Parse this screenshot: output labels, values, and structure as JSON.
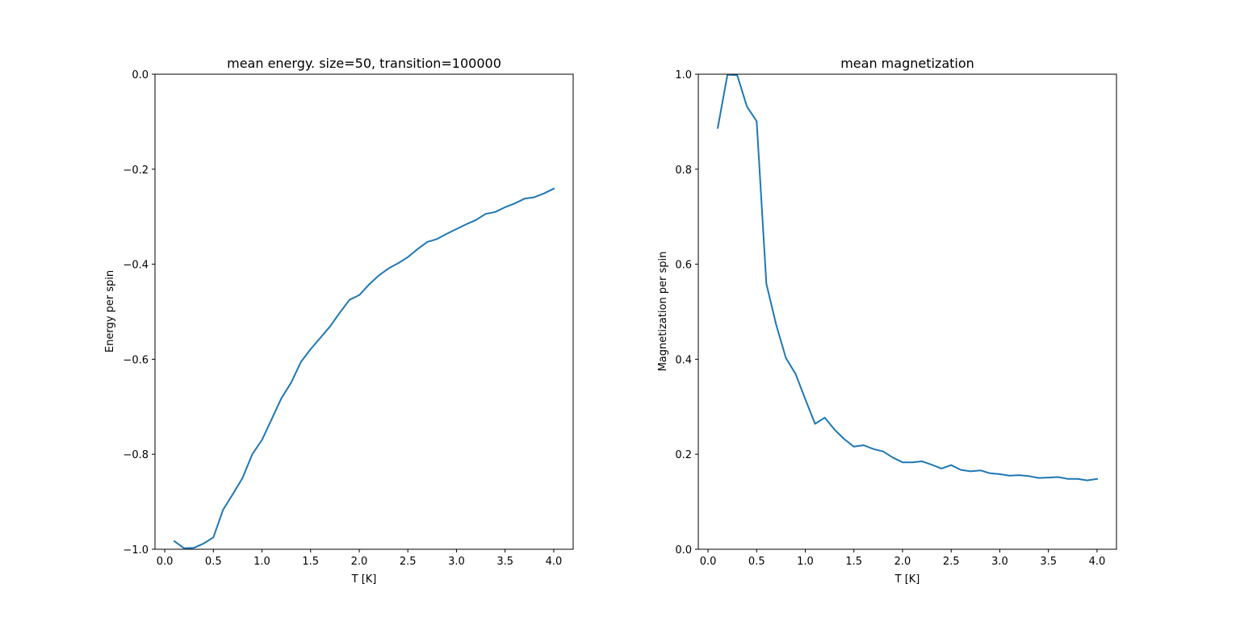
{
  "chart_data": [
    {
      "type": "line",
      "title": "mean energy. size=50, transition=100000",
      "xlabel": "T [K]",
      "ylabel": "Energy per spin",
      "xlim": [
        -0.1,
        4.2
      ],
      "ylim": [
        -1.0,
        0.0
      ],
      "x_ticks": [
        0.0,
        0.5,
        1.0,
        1.5,
        2.0,
        2.5,
        3.0,
        3.5,
        4.0
      ],
      "x_tick_labels": [
        "0.0",
        "0.5",
        "1.0",
        "1.5",
        "2.0",
        "2.5",
        "3.0",
        "3.5",
        "4.0"
      ],
      "y_ticks": [
        -1.0,
        -0.8,
        -0.6,
        -0.4,
        -0.2,
        0.0
      ],
      "y_tick_labels": [
        "−1.0",
        "−0.8",
        "−0.6",
        "−0.4",
        "−0.2",
        "0.0"
      ],
      "grid": false,
      "series": [
        {
          "color": "#1f77b4",
          "x": [
            0.1,
            0.2,
            0.3,
            0.4,
            0.5,
            0.6,
            0.7,
            0.8,
            0.9,
            1.0,
            1.1,
            1.2,
            1.3,
            1.4,
            1.5,
            1.6,
            1.7,
            1.8,
            1.9,
            2.0,
            2.1,
            2.2,
            2.3,
            2.4,
            2.5,
            2.6,
            2.7,
            2.8,
            2.9,
            3.0,
            3.1,
            3.2,
            3.3,
            3.4,
            3.5,
            3.6,
            3.7,
            3.8,
            3.9,
            4.0
          ],
          "y": [
            -0.983,
            -0.998,
            -0.997,
            -0.988,
            -0.975,
            -0.917,
            -0.884,
            -0.85,
            -0.8,
            -0.77,
            -0.726,
            -0.682,
            -0.649,
            -0.606,
            -0.579,
            -0.555,
            -0.531,
            -0.502,
            -0.475,
            -0.465,
            -0.443,
            -0.424,
            -0.409,
            -0.398,
            -0.385,
            -0.368,
            -0.353,
            -0.347,
            -0.336,
            -0.326,
            -0.316,
            -0.307,
            -0.294,
            -0.29,
            -0.28,
            -0.272,
            -0.262,
            -0.259,
            -0.251,
            -0.241
          ]
        }
      ]
    },
    {
      "type": "line",
      "title": "mean magnetization",
      "xlabel": "T [K]",
      "ylabel": "Magnetization per spin",
      "xlim": [
        -0.1,
        4.2
      ],
      "ylim": [
        0.0,
        1.0
      ],
      "x_ticks": [
        0.0,
        0.5,
        1.0,
        1.5,
        2.0,
        2.5,
        3.0,
        3.5,
        4.0
      ],
      "x_tick_labels": [
        "0.0",
        "0.5",
        "1.0",
        "1.5",
        "2.0",
        "2.5",
        "3.0",
        "3.5",
        "4.0"
      ],
      "y_ticks": [
        0.0,
        0.2,
        0.4,
        0.6,
        0.8,
        1.0
      ],
      "y_tick_labels": [
        "0.0",
        "0.2",
        "0.4",
        "0.6",
        "0.8",
        "1.0"
      ],
      "grid": false,
      "series": [
        {
          "color": "#1f77b4",
          "x": [
            0.1,
            0.2,
            0.3,
            0.4,
            0.5,
            0.6,
            0.7,
            0.8,
            0.9,
            1.0,
            1.1,
            1.2,
            1.3,
            1.4,
            1.5,
            1.6,
            1.7,
            1.8,
            1.9,
            2.0,
            2.1,
            2.2,
            2.3,
            2.4,
            2.5,
            2.6,
            2.7,
            2.8,
            2.9,
            3.0,
            3.1,
            3.2,
            3.3,
            3.4,
            3.5,
            3.6,
            3.7,
            3.8,
            3.9,
            4.0
          ],
          "y": [
            0.887,
            0.999,
            0.998,
            0.932,
            0.901,
            0.559,
            0.473,
            0.403,
            0.369,
            0.316,
            0.264,
            0.277,
            0.252,
            0.232,
            0.216,
            0.219,
            0.211,
            0.206,
            0.193,
            0.183,
            0.183,
            0.185,
            0.178,
            0.17,
            0.177,
            0.167,
            0.164,
            0.166,
            0.16,
            0.158,
            0.155,
            0.156,
            0.154,
            0.15,
            0.151,
            0.152,
            0.148,
            0.148,
            0.145,
            0.148
          ]
        }
      ]
    }
  ]
}
